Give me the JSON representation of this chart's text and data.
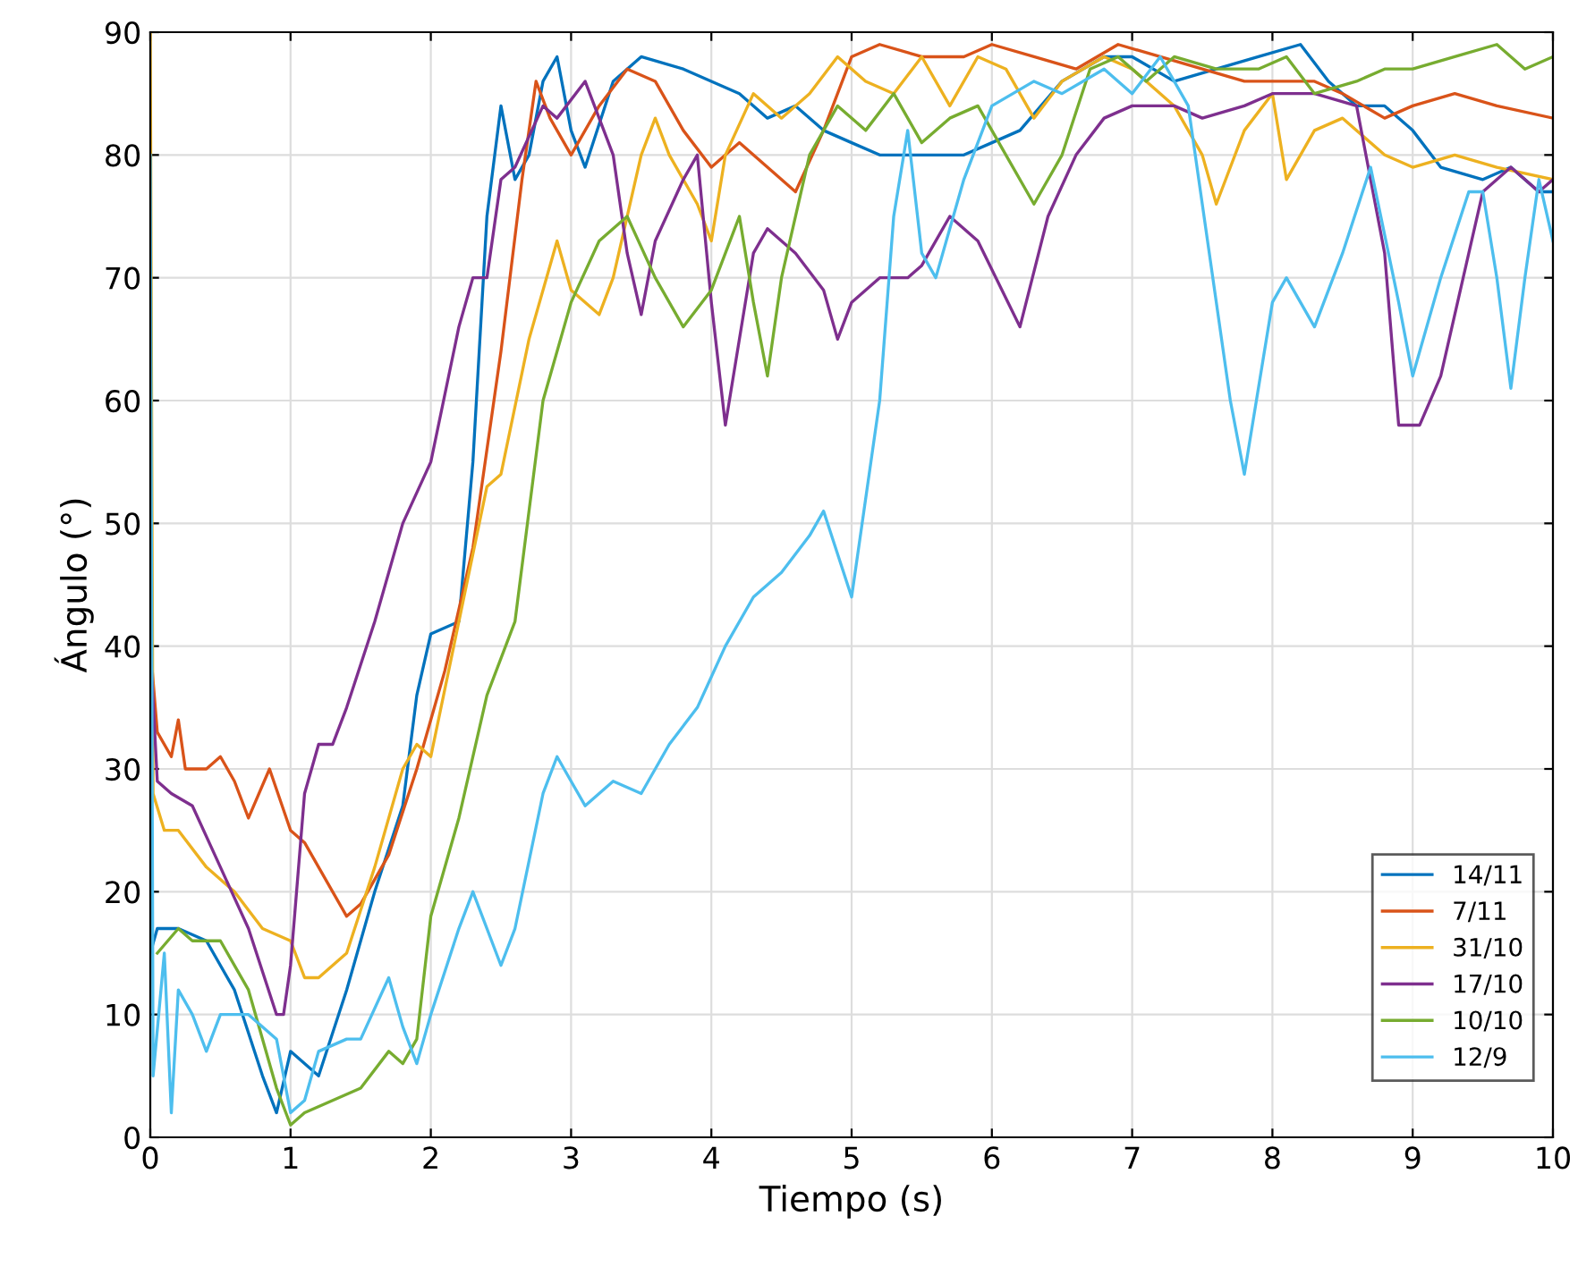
{
  "chart_data": {
    "type": "line",
    "xlabel": "Tiempo (s)",
    "ylabel": "Ángulo (°)",
    "xlim": [
      0,
      10
    ],
    "ylim": [
      0,
      90
    ],
    "xticks": [
      0,
      1,
      2,
      3,
      4,
      5,
      6,
      7,
      8,
      9,
      10
    ],
    "yticks": [
      0,
      10,
      20,
      30,
      40,
      50,
      60,
      70,
      80,
      90
    ],
    "grid": true,
    "legend": "bottom right",
    "marker": "none",
    "line_style": "solid",
    "series": [
      {
        "name": "14/11",
        "color": "#0072bd",
        "x": [
          0,
          0.05,
          0.2,
          0.4,
          0.6,
          0.8,
          0.9,
          1.0,
          1.1,
          1.2,
          1.4,
          1.6,
          1.8,
          1.9,
          2.0,
          2.2,
          2.3,
          2.4,
          2.5,
          2.6,
          2.7,
          2.8,
          2.9,
          3.0,
          3.1,
          3.3,
          3.5,
          3.8,
          4.0,
          4.2,
          4.4,
          4.6,
          4.8,
          5.0,
          5.2,
          5.5,
          5.8,
          6.0,
          6.2,
          6.5,
          6.8,
          7.0,
          7.3,
          7.6,
          7.9,
          8.2,
          8.4,
          8.6,
          8.8,
          9.0,
          9.2,
          9.5,
          9.7,
          9.9,
          10
        ],
        "values": [
          15,
          17,
          17,
          16,
          12,
          5,
          2,
          7,
          6,
          5,
          12,
          20,
          27,
          36,
          41,
          42,
          55,
          75,
          84,
          78,
          80,
          86,
          88,
          82,
          79,
          86,
          88,
          87,
          86,
          85,
          83,
          84,
          82,
          81,
          80,
          80,
          80,
          81,
          82,
          86,
          88,
          88,
          86,
          87,
          88,
          89,
          86,
          84,
          84,
          82,
          79,
          78,
          79,
          77,
          77
        ]
      },
      {
        "name": "7/11",
        "color": "#d95319",
        "x": [
          0,
          0.05,
          0.15,
          0.2,
          0.25,
          0.4,
          0.5,
          0.6,
          0.7,
          0.85,
          1.0,
          1.1,
          1.3,
          1.4,
          1.5,
          1.7,
          1.9,
          2.1,
          2.3,
          2.5,
          2.65,
          2.75,
          2.85,
          3.0,
          3.2,
          3.4,
          3.6,
          3.8,
          4.0,
          4.2,
          4.4,
          4.6,
          4.8,
          5.0,
          5.2,
          5.5,
          5.8,
          6.0,
          6.3,
          6.6,
          6.9,
          7.2,
          7.5,
          7.8,
          8.1,
          8.3,
          8.5,
          8.8,
          9.0,
          9.3,
          9.6,
          10
        ],
        "values": [
          40,
          33,
          31,
          34,
          30,
          30,
          31,
          29,
          26,
          30,
          25,
          24,
          20,
          18,
          19,
          23,
          30,
          38,
          48,
          64,
          78,
          86,
          83,
          80,
          84,
          87,
          86,
          82,
          79,
          81,
          79,
          77,
          82,
          88,
          89,
          88,
          88,
          89,
          88,
          87,
          89,
          88,
          87,
          86,
          86,
          86,
          85,
          83,
          84,
          85,
          84,
          83
        ]
      },
      {
        "name": "31/10",
        "color": "#edb120",
        "x": [
          0,
          0.02,
          0.1,
          0.2,
          0.4,
          0.6,
          0.8,
          1.0,
          1.1,
          1.2,
          1.4,
          1.6,
          1.8,
          1.9,
          2.0,
          2.2,
          2.4,
          2.5,
          2.7,
          2.9,
          3.0,
          3.2,
          3.3,
          3.5,
          3.6,
          3.7,
          3.9,
          4.0,
          4.1,
          4.3,
          4.5,
          4.7,
          4.9,
          5.1,
          5.3,
          5.5,
          5.7,
          5.9,
          6.1,
          6.3,
          6.5,
          6.8,
          7.0,
          7.3,
          7.5,
          7.6,
          7.8,
          8.0,
          8.1,
          8.3,
          8.5,
          8.8,
          9.0,
          9.3,
          9.6,
          10
        ],
        "values": [
          90,
          28,
          25,
          25,
          22,
          20,
          17,
          16,
          13,
          13,
          15,
          22,
          30,
          32,
          31,
          42,
          53,
          54,
          65,
          73,
          69,
          67,
          70,
          80,
          83,
          80,
          76,
          73,
          80,
          85,
          83,
          85,
          88,
          86,
          85,
          88,
          84,
          88,
          87,
          83,
          86,
          88,
          87,
          84,
          80,
          76,
          82,
          85,
          78,
          82,
          83,
          80,
          79,
          80,
          79,
          78
        ]
      },
      {
        "name": "17/10",
        "color": "#7e2f8e",
        "x": [
          0,
          0.05,
          0.15,
          0.3,
          0.5,
          0.7,
          0.9,
          0.95,
          1.0,
          1.1,
          1.2,
          1.3,
          1.4,
          1.6,
          1.8,
          2.0,
          2.2,
          2.3,
          2.4,
          2.5,
          2.6,
          2.8,
          2.9,
          3.1,
          3.3,
          3.4,
          3.5,
          3.6,
          3.8,
          3.9,
          4.0,
          4.1,
          4.2,
          4.3,
          4.4,
          4.6,
          4.8,
          4.9,
          5.0,
          5.2,
          5.4,
          5.5,
          5.7,
          5.9,
          6.2,
          6.4,
          6.6,
          6.8,
          7.0,
          7.3,
          7.5,
          7.8,
          8.0,
          8.3,
          8.6,
          8.8,
          8.9,
          9.05,
          9.2,
          9.4,
          9.5,
          9.7,
          9.9,
          10
        ],
        "values": [
          40,
          29,
          28,
          27,
          22,
          17,
          10,
          10,
          14,
          28,
          32,
          32,
          35,
          42,
          50,
          55,
          66,
          70,
          70,
          78,
          79,
          84,
          83,
          86,
          80,
          72,
          67,
          73,
          78,
          80,
          68,
          58,
          65,
          72,
          74,
          72,
          69,
          65,
          68,
          70,
          70,
          71,
          75,
          73,
          66,
          75,
          80,
          83,
          84,
          84,
          83,
          84,
          85,
          85,
          84,
          72,
          58,
          58,
          62,
          72,
          77,
          79,
          77,
          78
        ]
      },
      {
        "name": "10/10",
        "color": "#77ac30",
        "x": [
          0.05,
          0.2,
          0.3,
          0.5,
          0.7,
          0.9,
          1.0,
          1.1,
          1.3,
          1.5,
          1.7,
          1.8,
          1.9,
          2.0,
          2.2,
          2.4,
          2.6,
          2.8,
          3.0,
          3.2,
          3.4,
          3.6,
          3.8,
          4.0,
          4.2,
          4.3,
          4.4,
          4.5,
          4.7,
          4.9,
          5.1,
          5.3,
          5.5,
          5.7,
          5.9,
          6.1,
          6.3,
          6.5,
          6.7,
          6.9,
          7.1,
          7.3,
          7.6,
          7.9,
          8.1,
          8.3,
          8.6,
          8.8,
          9.0,
          9.3,
          9.6,
          9.8,
          10
        ],
        "values": [
          15,
          17,
          16,
          16,
          12,
          4,
          1,
          2,
          3,
          4,
          7,
          6,
          8,
          18,
          26,
          36,
          42,
          60,
          68,
          73,
          75,
          70,
          66,
          69,
          75,
          68,
          62,
          70,
          80,
          84,
          82,
          85,
          81,
          83,
          84,
          80,
          76,
          80,
          87,
          88,
          86,
          88,
          87,
          87,
          88,
          85,
          86,
          87,
          87,
          88,
          89,
          87,
          88
        ]
      },
      {
        "name": "12/9",
        "color": "#4dbeee",
        "x": [
          0,
          0.02,
          0.1,
          0.15,
          0.2,
          0.3,
          0.4,
          0.5,
          0.7,
          0.9,
          1.0,
          1.1,
          1.2,
          1.4,
          1.5,
          1.7,
          1.8,
          1.9,
          2.0,
          2.2,
          2.3,
          2.5,
          2.6,
          2.8,
          2.9,
          3.0,
          3.1,
          3.3,
          3.5,
          3.7,
          3.9,
          4.1,
          4.3,
          4.5,
          4.7,
          4.8,
          5.0,
          5.2,
          5.3,
          5.4,
          5.5,
          5.6,
          5.8,
          6.0,
          6.3,
          6.5,
          6.8,
          7.0,
          7.2,
          7.4,
          7.5,
          7.7,
          7.8,
          8.0,
          8.1,
          8.3,
          8.5,
          8.7,
          8.9,
          9.0,
          9.2,
          9.4,
          9.5,
          9.6,
          9.7,
          9.8,
          9.9,
          10
        ],
        "values": [
          80,
          5,
          15,
          2,
          12,
          10,
          7,
          10,
          10,
          8,
          2,
          3,
          7,
          8,
          8,
          13,
          9,
          6,
          10,
          17,
          20,
          14,
          17,
          28,
          31,
          29,
          27,
          29,
          28,
          32,
          35,
          40,
          44,
          46,
          49,
          51,
          44,
          60,
          75,
          82,
          72,
          70,
          78,
          84,
          86,
          85,
          87,
          85,
          88,
          84,
          76,
          60,
          54,
          68,
          70,
          66,
          72,
          79,
          68,
          62,
          70,
          77,
          77,
          70,
          61,
          70,
          78,
          73
        ]
      }
    ]
  }
}
